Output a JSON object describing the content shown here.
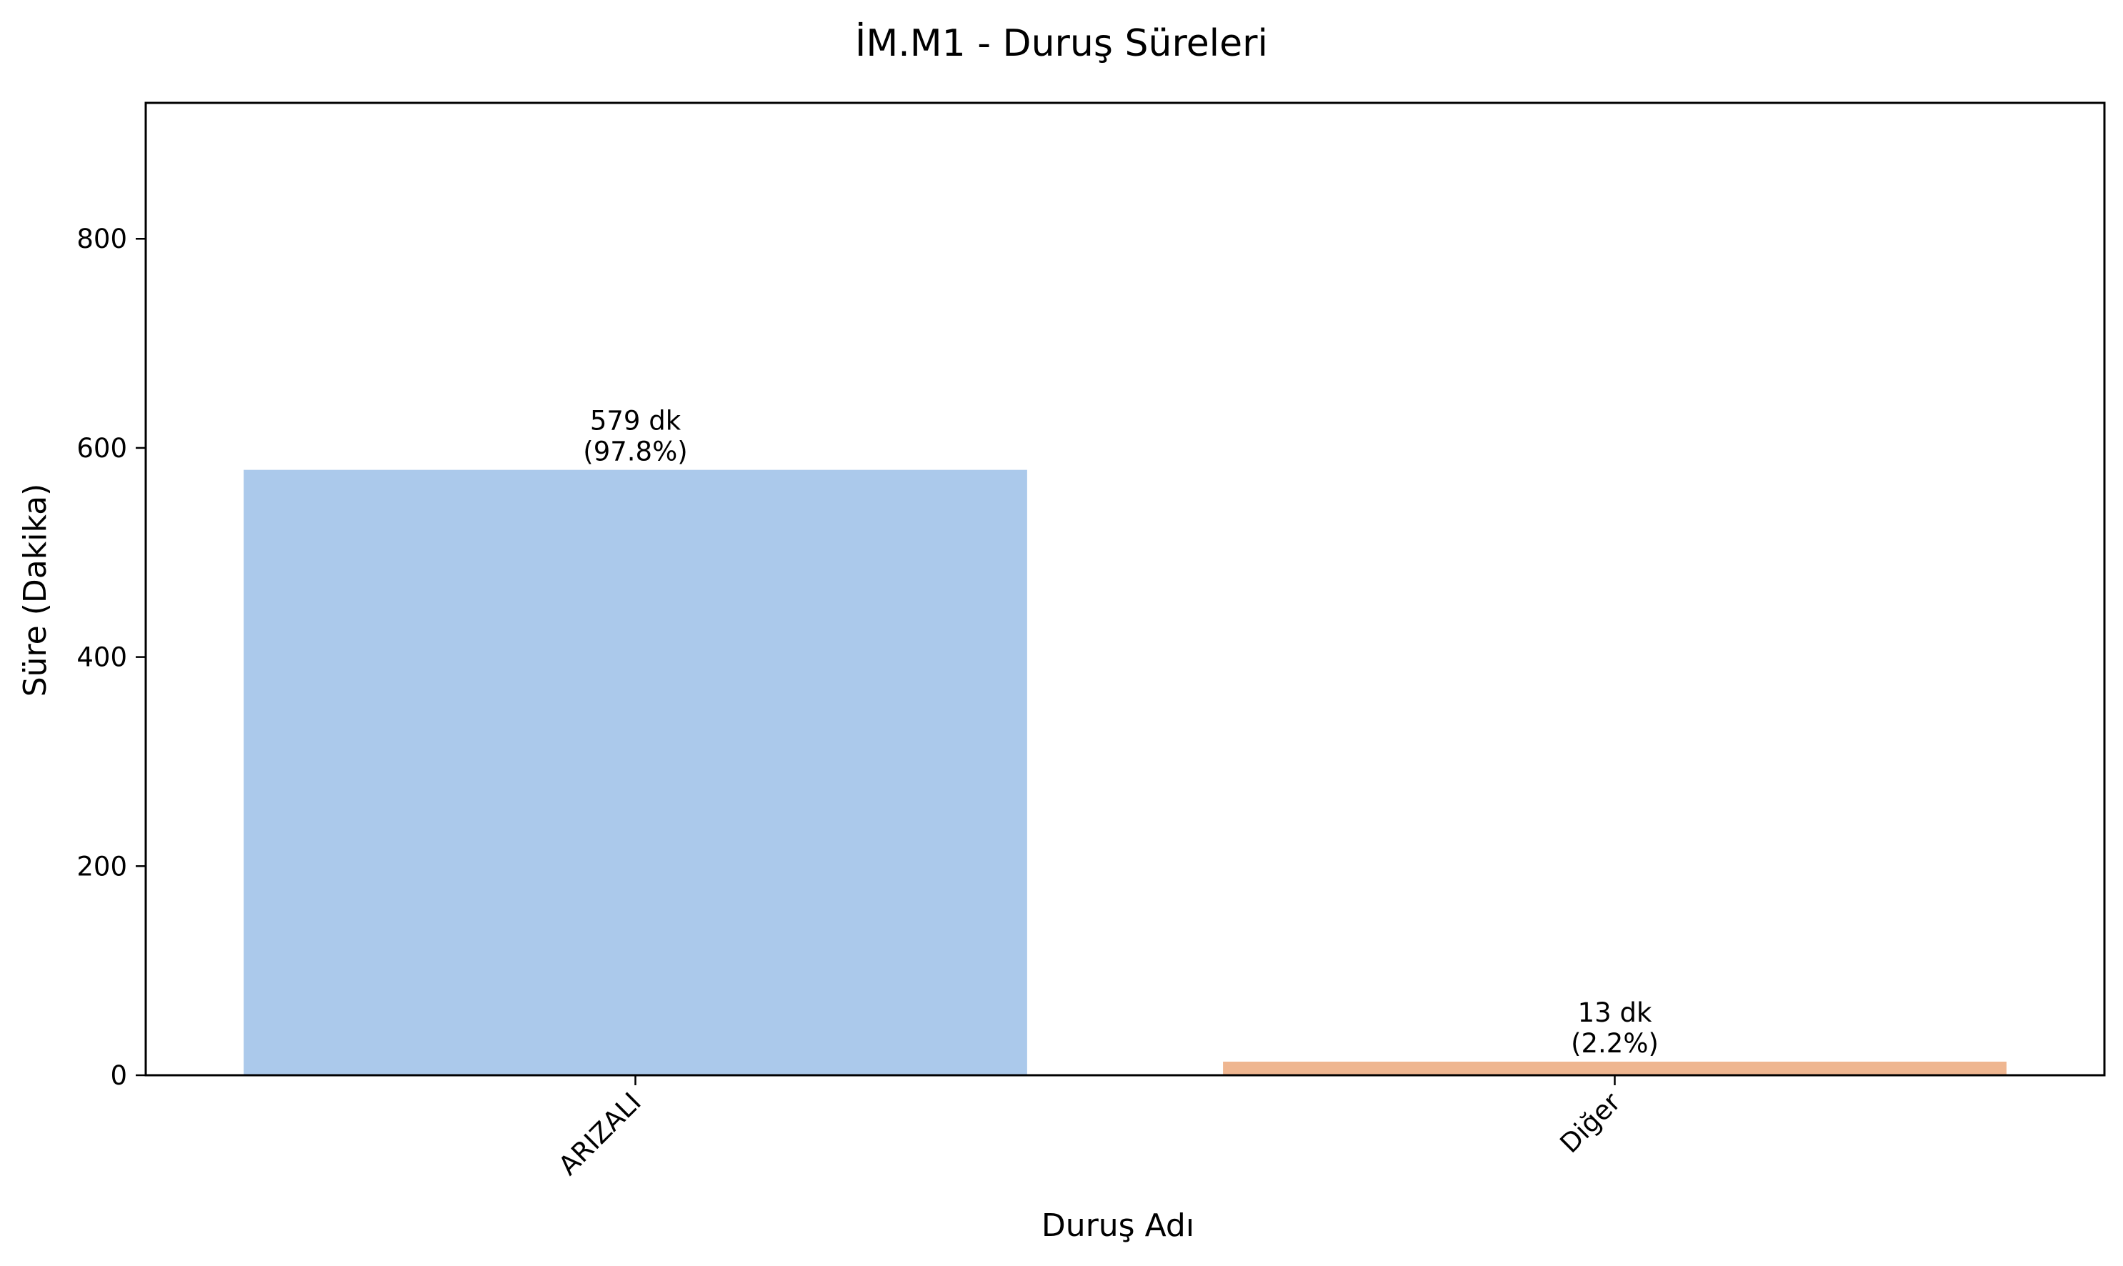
{
  "chart_data": {
    "type": "bar",
    "title": "İM.M1 - Duruş Süreleri",
    "xlabel": "Duruş Adı",
    "ylabel": "Süre (Dakika)",
    "categories": [
      "ARIZALI",
      "Diğer"
    ],
    "values": [
      579,
      13
    ],
    "bar_labels": [
      [
        "579 dk",
        "(97.8%)"
      ],
      [
        "13 dk",
        "(2.2%)"
      ]
    ],
    "colors": [
      "#abc9eb",
      "#efb690"
    ],
    "ylim": [
      0,
      930
    ],
    "yticks": [
      0,
      200,
      400,
      600,
      800
    ],
    "ytick_labels": [
      "0",
      "200",
      "400",
      "600",
      "800"
    ],
    "grid": false,
    "legend": false
  }
}
